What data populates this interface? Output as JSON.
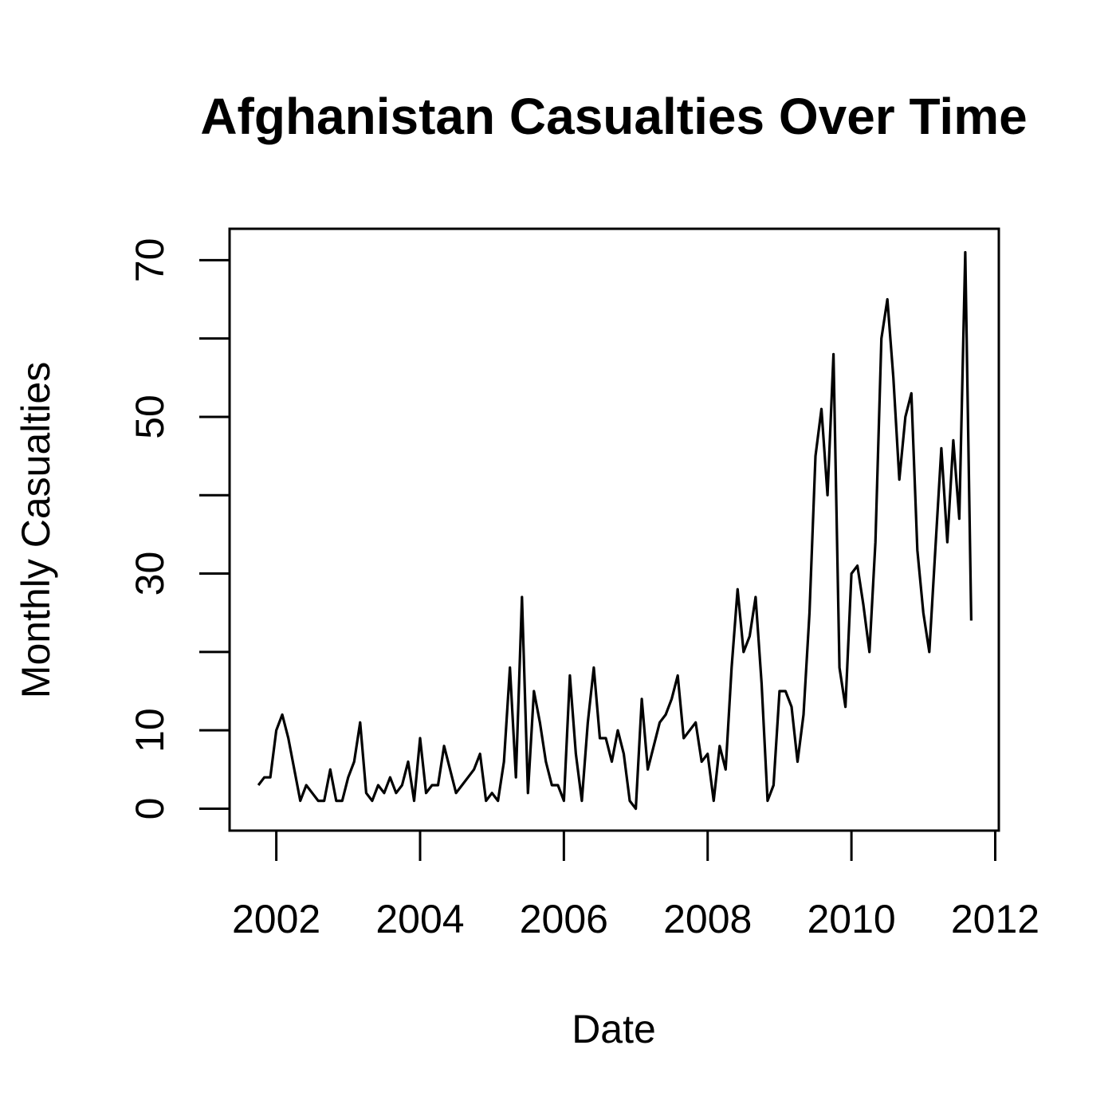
{
  "chart_data": {
    "type": "line",
    "title": "Afghanistan Casualties Over Time",
    "xlabel": "Date",
    "ylabel": "Monthly Casualties",
    "x_ticks": [
      "2002",
      "2004",
      "2006",
      "2008",
      "2010",
      "2012"
    ],
    "x_tick_values": [
      2002,
      2004,
      2006,
      2008,
      2010,
      2012
    ],
    "y_ticks": [
      0,
      10,
      20,
      30,
      40,
      50,
      60,
      70
    ],
    "y_tick_labels": [
      "0",
      "10",
      "",
      "30",
      "",
      "50",
      "",
      "70"
    ],
    "xlim": [
      2001.35,
      2012.05
    ],
    "ylim": [
      -2.8,
      74
    ],
    "grid": false,
    "legend": "none",
    "line_color": "#000000",
    "series": [
      {
        "x": [
          "2001-10",
          "2001-11",
          "2001-12",
          "2002-01",
          "2002-02",
          "2002-03",
          "2002-04",
          "2002-05",
          "2002-06",
          "2002-07",
          "2002-08",
          "2002-09",
          "2002-10",
          "2002-11",
          "2002-12",
          "2003-01",
          "2003-02",
          "2003-03",
          "2003-04",
          "2003-05",
          "2003-06",
          "2003-07",
          "2003-08",
          "2003-09",
          "2003-10",
          "2003-11",
          "2003-12",
          "2004-01",
          "2004-02",
          "2004-03",
          "2004-04",
          "2004-05",
          "2004-06",
          "2004-07",
          "2004-08",
          "2004-09",
          "2004-10",
          "2004-11",
          "2004-12",
          "2005-01",
          "2005-02",
          "2005-03",
          "2005-04",
          "2005-05",
          "2005-06",
          "2005-07",
          "2005-08",
          "2005-09",
          "2005-10",
          "2005-11",
          "2005-12",
          "2006-01",
          "2006-02",
          "2006-03",
          "2006-04",
          "2006-05",
          "2006-06",
          "2006-07",
          "2006-08",
          "2006-09",
          "2006-10",
          "2006-11",
          "2006-12",
          "2007-01",
          "2007-02",
          "2007-03",
          "2007-04",
          "2007-05",
          "2007-06",
          "2007-07",
          "2007-08",
          "2007-09",
          "2007-10",
          "2007-11",
          "2007-12",
          "2008-01",
          "2008-02",
          "2008-03",
          "2008-04",
          "2008-05",
          "2008-06",
          "2008-07",
          "2008-08",
          "2008-09",
          "2008-10",
          "2008-11",
          "2008-12",
          "2009-01",
          "2009-02",
          "2009-03",
          "2009-04",
          "2009-05",
          "2009-06",
          "2009-07",
          "2009-08",
          "2009-09",
          "2009-10",
          "2009-11",
          "2009-12",
          "2010-01",
          "2010-02",
          "2010-03",
          "2010-04",
          "2010-05",
          "2010-06",
          "2010-07",
          "2010-08",
          "2010-09",
          "2010-10",
          "2010-11",
          "2010-12",
          "2011-01",
          "2011-02",
          "2011-03",
          "2011-04",
          "2011-05",
          "2011-06",
          "2011-07",
          "2011-08",
          "2011-09"
        ],
        "values": [
          3,
          4,
          4,
          10,
          12,
          9,
          5,
          1,
          3,
          2,
          1,
          1,
          5,
          1,
          1,
          4,
          6,
          11,
          2,
          1,
          3,
          2,
          4,
          2,
          3,
          6,
          1,
          9,
          2,
          3,
          3,
          8,
          5,
          2,
          3,
          4,
          5,
          7,
          1,
          2,
          1,
          6,
          18,
          4,
          27,
          2,
          15,
          11,
          6,
          3,
          3,
          1,
          17,
          7,
          1,
          11,
          18,
          9,
          9,
          6,
          10,
          7,
          1,
          0,
          14,
          5,
          8,
          11,
          12,
          14,
          17,
          9,
          10,
          11,
          6,
          7,
          1,
          8,
          5,
          18,
          28,
          20,
          22,
          27,
          16,
          1,
          3,
          15,
          15,
          13,
          6,
          12,
          25,
          45,
          51,
          40,
          58,
          18,
          13,
          30,
          31,
          26,
          20,
          34,
          60,
          65,
          55,
          42,
          50,
          53,
          33,
          25,
          20,
          33,
          46,
          34,
          47,
          37,
          71,
          24
        ]
      }
    ]
  }
}
